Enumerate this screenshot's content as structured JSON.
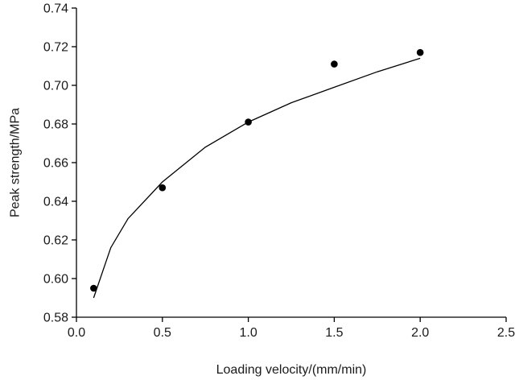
{
  "chart_data": {
    "type": "scatter",
    "title": "",
    "xlabel": "Loading velocity/(mm/min)",
    "ylabel": "Peak strength/MPa",
    "xlim": [
      0.0,
      2.5
    ],
    "ylim": [
      0.58,
      0.74
    ],
    "x_ticks": [
      "0.0",
      "0.5",
      "1.0",
      "1.5",
      "2.0",
      "2.5"
    ],
    "y_ticks": [
      "0.58",
      "0.60",
      "0.62",
      "0.64",
      "0.66",
      "0.68",
      "0.70",
      "0.72",
      "0.74"
    ],
    "grid": false,
    "legend": "none",
    "series": [
      {
        "type": "scatter",
        "x": [
          0.1,
          0.5,
          1.0,
          1.5,
          2.0
        ],
        "y": [
          0.595,
          0.647,
          0.681,
          0.711,
          0.717
        ]
      },
      {
        "type": "line",
        "x": [
          0.1,
          0.2,
          0.3,
          0.5,
          0.75,
          1.0,
          1.25,
          1.5,
          1.75,
          2.0
        ],
        "y": [
          0.59,
          0.616,
          0.631,
          0.65,
          0.668,
          0.681,
          0.691,
          0.699,
          0.707,
          0.714
        ]
      }
    ],
    "colors": {
      "points": "#000000",
      "curve": "#000000",
      "axes": "#000000"
    }
  }
}
